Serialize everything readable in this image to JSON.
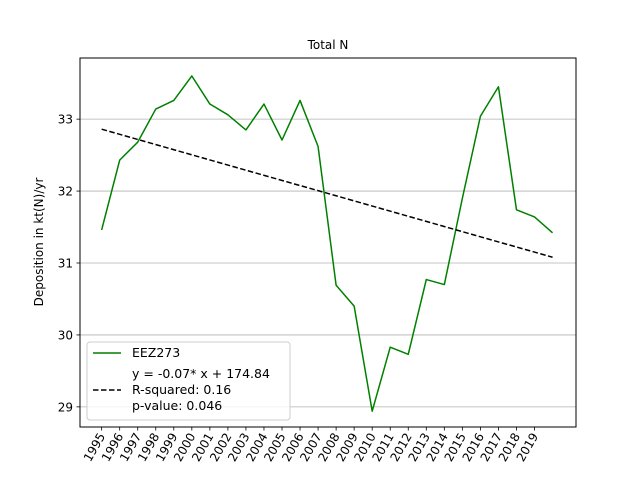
{
  "chart_data": {
    "type": "line",
    "title": "Total N",
    "xlabel": "",
    "ylabel": "Deposition in kt(N)/yr",
    "x": [
      1995,
      1996,
      1997,
      1998,
      1999,
      2000,
      2001,
      2002,
      2003,
      2004,
      2005,
      2006,
      2007,
      2008,
      2009,
      2010,
      2011,
      2012,
      2013,
      2014,
      2015,
      2016,
      2017,
      2018,
      2019,
      2020
    ],
    "x_tick_labels": [
      "1995",
      "1996",
      "1997",
      "1998",
      "1999",
      "2000",
      "2001",
      "2002",
      "2003",
      "2004",
      "2005",
      "2006",
      "2007",
      "2008",
      "2009",
      "2010",
      "2011",
      "2012",
      "2013",
      "2014",
      "2015",
      "2016",
      "2017",
      "2018",
      "2019"
    ],
    "y_ticks": [
      29,
      30,
      31,
      32,
      33
    ],
    "ylim": [
      28.72,
      33.85
    ],
    "xlim": [
      1993.8,
      2021.3
    ],
    "grid": "horizontal",
    "legend_position": "lower-left",
    "series": [
      {
        "name": "EEZ273",
        "color": "#008000",
        "style": "solid",
        "values": [
          31.46,
          32.43,
          32.68,
          33.14,
          33.26,
          33.6,
          33.21,
          33.06,
          32.85,
          33.21,
          32.71,
          33.26,
          32.62,
          30.69,
          30.4,
          28.94,
          29.83,
          29.73,
          30.77,
          30.7,
          31.9,
          33.04,
          33.45,
          31.74,
          31.64,
          31.42
        ]
      },
      {
        "name": "y = -0.07* x + 174.84\nR-squared: 0.16\np-value: 0.046",
        "legend_lines": [
          "y = -0.07* x + 174.84",
          "R-squared: 0.16",
          "p-value: 0.046"
        ],
        "color": "#000000",
        "style": "dashed",
        "values": [
          32.86,
          31.08
        ],
        "x": [
          1995,
          2020
        ]
      }
    ]
  }
}
